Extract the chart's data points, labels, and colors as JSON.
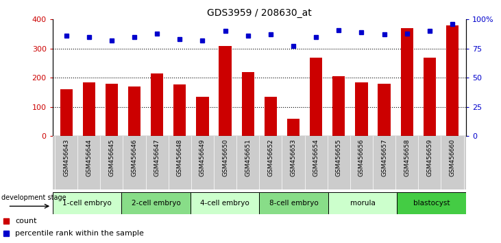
{
  "title": "GDS3959 / 208630_at",
  "samples": [
    "GSM456643",
    "GSM456644",
    "GSM456645",
    "GSM456646",
    "GSM456647",
    "GSM456648",
    "GSM456649",
    "GSM456650",
    "GSM456651",
    "GSM456652",
    "GSM456653",
    "GSM456654",
    "GSM456655",
    "GSM456656",
    "GSM456657",
    "GSM456658",
    "GSM456659",
    "GSM456660"
  ],
  "counts": [
    160,
    185,
    180,
    170,
    215,
    178,
    135,
    308,
    220,
    135,
    60,
    270,
    205,
    185,
    180,
    370,
    268,
    380
  ],
  "percentiles": [
    86,
    85,
    82,
    85,
    88,
    83,
    82,
    90,
    86,
    87,
    77,
    85,
    91,
    89,
    87,
    88,
    90,
    96
  ],
  "ylim_left": [
    0,
    400
  ],
  "ylim_right": [
    0,
    100
  ],
  "yticks_left": [
    0,
    100,
    200,
    300,
    400
  ],
  "yticks_right": [
    0,
    25,
    50,
    75,
    100
  ],
  "bar_color": "#cc0000",
  "dot_color": "#0000cc",
  "stages": [
    {
      "label": "1-cell embryo",
      "start": 0,
      "end": 3
    },
    {
      "label": "2-cell embryo",
      "start": 3,
      "end": 6
    },
    {
      "label": "4-cell embryo",
      "start": 6,
      "end": 9
    },
    {
      "label": "8-cell embryo",
      "start": 9,
      "end": 12
    },
    {
      "label": "morula",
      "start": 12,
      "end": 15
    },
    {
      "label": "blastocyst",
      "start": 15,
      "end": 18
    }
  ],
  "stage_colors": [
    "#ccffcc",
    "#88dd88",
    "#ccffcc",
    "#88dd88",
    "#ccffcc",
    "#44cc44"
  ],
  "xtick_area_color": "#cccccc",
  "background_color": "#ffffff"
}
